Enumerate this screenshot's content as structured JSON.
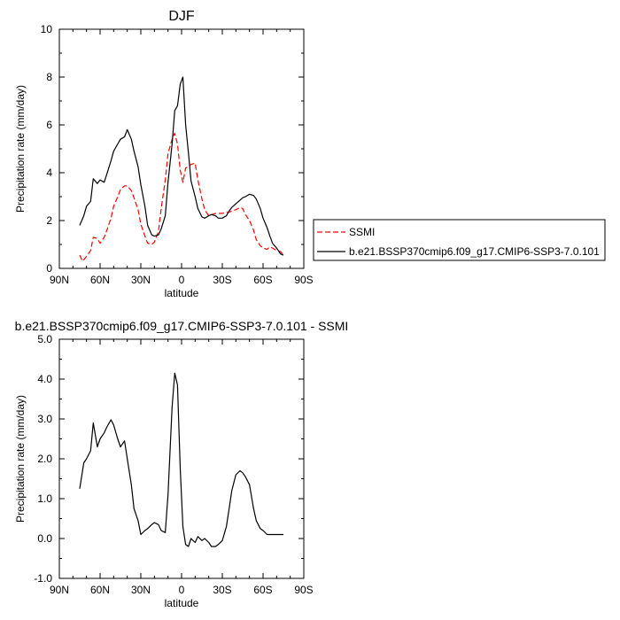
{
  "chart_data": [
    {
      "type": "line",
      "title": "DJF",
      "xlabel": "latitude",
      "ylabel": "Precipitation rate (mm/day)",
      "xlim": [
        90,
        -90
      ],
      "ylim": [
        0,
        10
      ],
      "x_ticks": [
        90,
        60,
        30,
        0,
        -30,
        -60,
        -90
      ],
      "x_tick_labels": [
        "90N",
        "60N",
        "30N",
        "0",
        "30S",
        "60S",
        "90S"
      ],
      "y_ticks": [
        0,
        2,
        4,
        6,
        8,
        10
      ],
      "y_tick_labels": [
        "0",
        "2",
        "4",
        "6",
        "8",
        "10"
      ],
      "grid": false,
      "legend": "right",
      "series": [
        {
          "name": "SSMI",
          "color": "#ff0000",
          "dash": "dashed",
          "x": [
            75,
            73,
            70,
            67,
            65,
            62,
            60,
            57,
            55,
            52,
            50,
            47,
            45,
            42,
            40,
            37,
            35,
            32,
            30,
            27,
            25,
            22,
            20,
            17,
            15,
            12,
            10,
            7,
            5,
            3,
            1,
            -1,
            -3,
            -5,
            -7,
            -10,
            -12,
            -15,
            -17,
            -20,
            -22,
            -25,
            -27,
            -30,
            -33,
            -35,
            -37,
            -40,
            -43,
            -45,
            -47,
            -50,
            -53,
            -55,
            -58,
            -60,
            -63,
            -65,
            -67,
            -70,
            -73,
            -75
          ],
          "y": [
            0.55,
            0.3,
            0.5,
            0.75,
            1.3,
            1.25,
            1.05,
            1.3,
            1.6,
            2.1,
            2.6,
            3.0,
            3.3,
            3.45,
            3.45,
            3.25,
            2.95,
            2.45,
            1.85,
            1.35,
            1.05,
            1.0,
            1.1,
            1.55,
            2.5,
            3.7,
            4.8,
            5.4,
            5.65,
            5.2,
            4.1,
            3.6,
            4.2,
            4.25,
            4.35,
            4.4,
            3.7,
            2.9,
            2.45,
            2.2,
            2.25,
            2.3,
            2.3,
            2.3,
            2.35,
            2.35,
            2.4,
            2.45,
            2.55,
            2.5,
            2.25,
            2.0,
            1.6,
            1.2,
            0.95,
            0.85,
            0.8,
            0.9,
            0.85,
            0.75,
            0.7,
            0.55
          ]
        },
        {
          "name": "b.e21.BSSP370cmip6.f09_g17.CMIP6-SSP3-7.0.101",
          "color": "#000000",
          "dash": "solid",
          "x": [
            75,
            72,
            70,
            67,
            65,
            62,
            60,
            57,
            55,
            52,
            50,
            47,
            45,
            42,
            40,
            37,
            35,
            32,
            30,
            27,
            25,
            22,
            20,
            17,
            15,
            12,
            10,
            7,
            5,
            3,
            1,
            -1,
            -3,
            -5,
            -7,
            -10,
            -12,
            -15,
            -17,
            -20,
            -22,
            -25,
            -27,
            -30,
            -33,
            -35,
            -37,
            -40,
            -43,
            -45,
            -47,
            -50,
            -53,
            -55,
            -58,
            -60,
            -63,
            -65,
            -67,
            -70,
            -73,
            -75
          ],
          "y": [
            1.8,
            2.2,
            2.6,
            2.8,
            3.75,
            3.55,
            3.7,
            3.6,
            3.95,
            4.5,
            4.9,
            5.2,
            5.4,
            5.5,
            5.8,
            5.4,
            4.9,
            4.25,
            3.5,
            2.6,
            1.8,
            1.4,
            1.35,
            1.4,
            1.65,
            2.2,
            3.6,
            5.2,
            6.6,
            6.8,
            7.7,
            8.0,
            6.0,
            4.85,
            3.65,
            3.0,
            2.5,
            2.15,
            2.1,
            2.2,
            2.25,
            2.2,
            2.1,
            2.1,
            2.2,
            2.4,
            2.55,
            2.7,
            2.85,
            2.95,
            3.0,
            3.1,
            3.05,
            2.9,
            2.5,
            2.1,
            1.7,
            1.35,
            1.05,
            0.85,
            0.6,
            0.55
          ]
        }
      ]
    },
    {
      "type": "line",
      "title": "b.e21.BSSP370cmip6.f09_g17.CMIP6-SSP3-7.0.101 - SSMI",
      "xlabel": "latitude",
      "ylabel": "Precipitation rate (mm/day)",
      "xlim": [
        90,
        -90
      ],
      "ylim": [
        -1,
        5
      ],
      "x_ticks": [
        90,
        60,
        30,
        0,
        -30,
        -60,
        -90
      ],
      "x_tick_labels": [
        "90N",
        "60N",
        "30N",
        "0",
        "30S",
        "60S",
        "90S"
      ],
      "y_ticks": [
        -1,
        0,
        1,
        2,
        3,
        4,
        5
      ],
      "y_tick_labels": [
        "-1.0",
        "0.0",
        "1.0",
        "2.0",
        "3.0",
        "4.0",
        "5.0"
      ],
      "grid": false,
      "series": [
        {
          "color": "#000000",
          "dash": "solid",
          "x": [
            75,
            72,
            70,
            67,
            65,
            62,
            60,
            57,
            55,
            52,
            50,
            47,
            45,
            42,
            40,
            37,
            35,
            32,
            30,
            27,
            25,
            22,
            20,
            17,
            15,
            12,
            10,
            7,
            5,
            3,
            1,
            -1,
            -3,
            -5,
            -7,
            -10,
            -12,
            -15,
            -17,
            -20,
            -22,
            -25,
            -27,
            -30,
            -33,
            -35,
            -37,
            -40,
            -43,
            -45,
            -47,
            -50,
            -53,
            -55,
            -58,
            -60,
            -63,
            -65,
            -67,
            -70,
            -73,
            -75
          ],
          "y": [
            1.25,
            1.9,
            2.0,
            2.2,
            2.9,
            2.3,
            2.5,
            2.65,
            2.8,
            2.98,
            2.85,
            2.5,
            2.3,
            2.45,
            2.0,
            1.35,
            0.75,
            0.45,
            0.1,
            0.2,
            0.25,
            0.35,
            0.4,
            0.35,
            0.2,
            0.15,
            1.1,
            3.3,
            4.15,
            3.85,
            1.75,
            0.3,
            -0.15,
            -0.2,
            0.0,
            -0.1,
            0.05,
            -0.05,
            0.0,
            -0.1,
            -0.2,
            -0.2,
            -0.15,
            -0.05,
            0.3,
            0.75,
            1.2,
            1.6,
            1.7,
            1.65,
            1.55,
            1.35,
            0.75,
            0.45,
            0.25,
            0.2,
            0.1,
            0.1,
            0.1,
            0.1,
            0.1,
            0.1
          ]
        }
      ]
    }
  ]
}
